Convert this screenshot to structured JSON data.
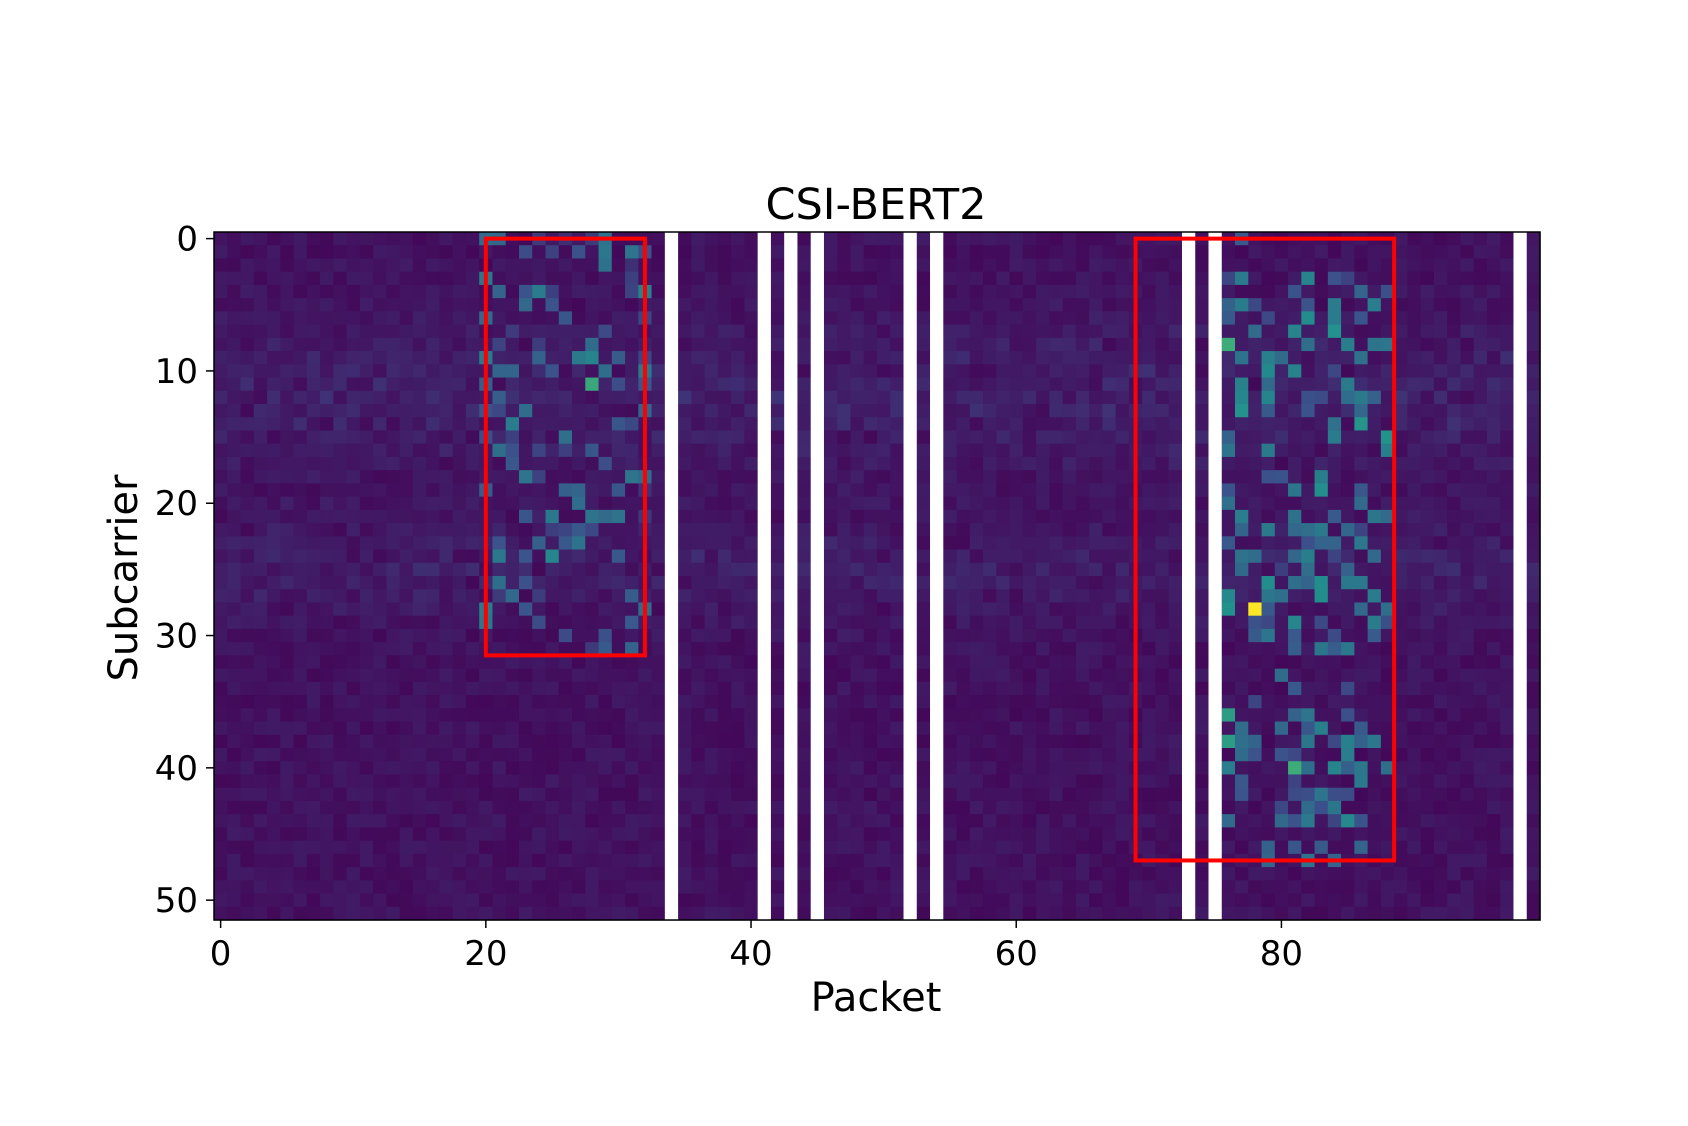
{
  "chart_data": {
    "type": "heatmap",
    "title": "CSI-BERT2",
    "xlabel": "Packet",
    "ylabel": "Subcarrier",
    "x_range": [
      -0.5,
      99.5
    ],
    "y_range": [
      51.5,
      -0.5
    ],
    "x_ticks": [
      0,
      20,
      40,
      60,
      80
    ],
    "y_ticks": [
      0,
      10,
      20,
      30,
      40,
      50
    ],
    "n_packets": 100,
    "n_subcarriers": 52,
    "colormap": "viridis",
    "grid": false,
    "missing_packet_columns": [
      34,
      41,
      43,
      45,
      52,
      54,
      73,
      75,
      98
    ],
    "highlight_boxes": [
      {
        "x": [
          20,
          32
        ],
        "y": [
          0,
          31.5
        ],
        "color": "#ff0000"
      },
      {
        "x": [
          69,
          88.5
        ],
        "y": [
          0,
          47
        ],
        "color": "#ff0000"
      }
    ],
    "peak_cells": [
      {
        "packet": 78,
        "subcarrier": 28,
        "value": 1.0
      },
      {
        "packet": 28,
        "subcarrier": 11,
        "value": 0.6
      },
      {
        "packet": 76,
        "subcarrier": 8,
        "value": 0.62
      },
      {
        "packet": 81,
        "subcarrier": 40,
        "value": 0.62
      },
      {
        "packet": 76,
        "subcarrier": 38,
        "value": 0.55
      },
      {
        "packet": 76,
        "subcarrier": 36,
        "value": 0.55
      },
      {
        "packet": 76,
        "subcarrier": 28,
        "value": 0.5
      }
    ]
  }
}
